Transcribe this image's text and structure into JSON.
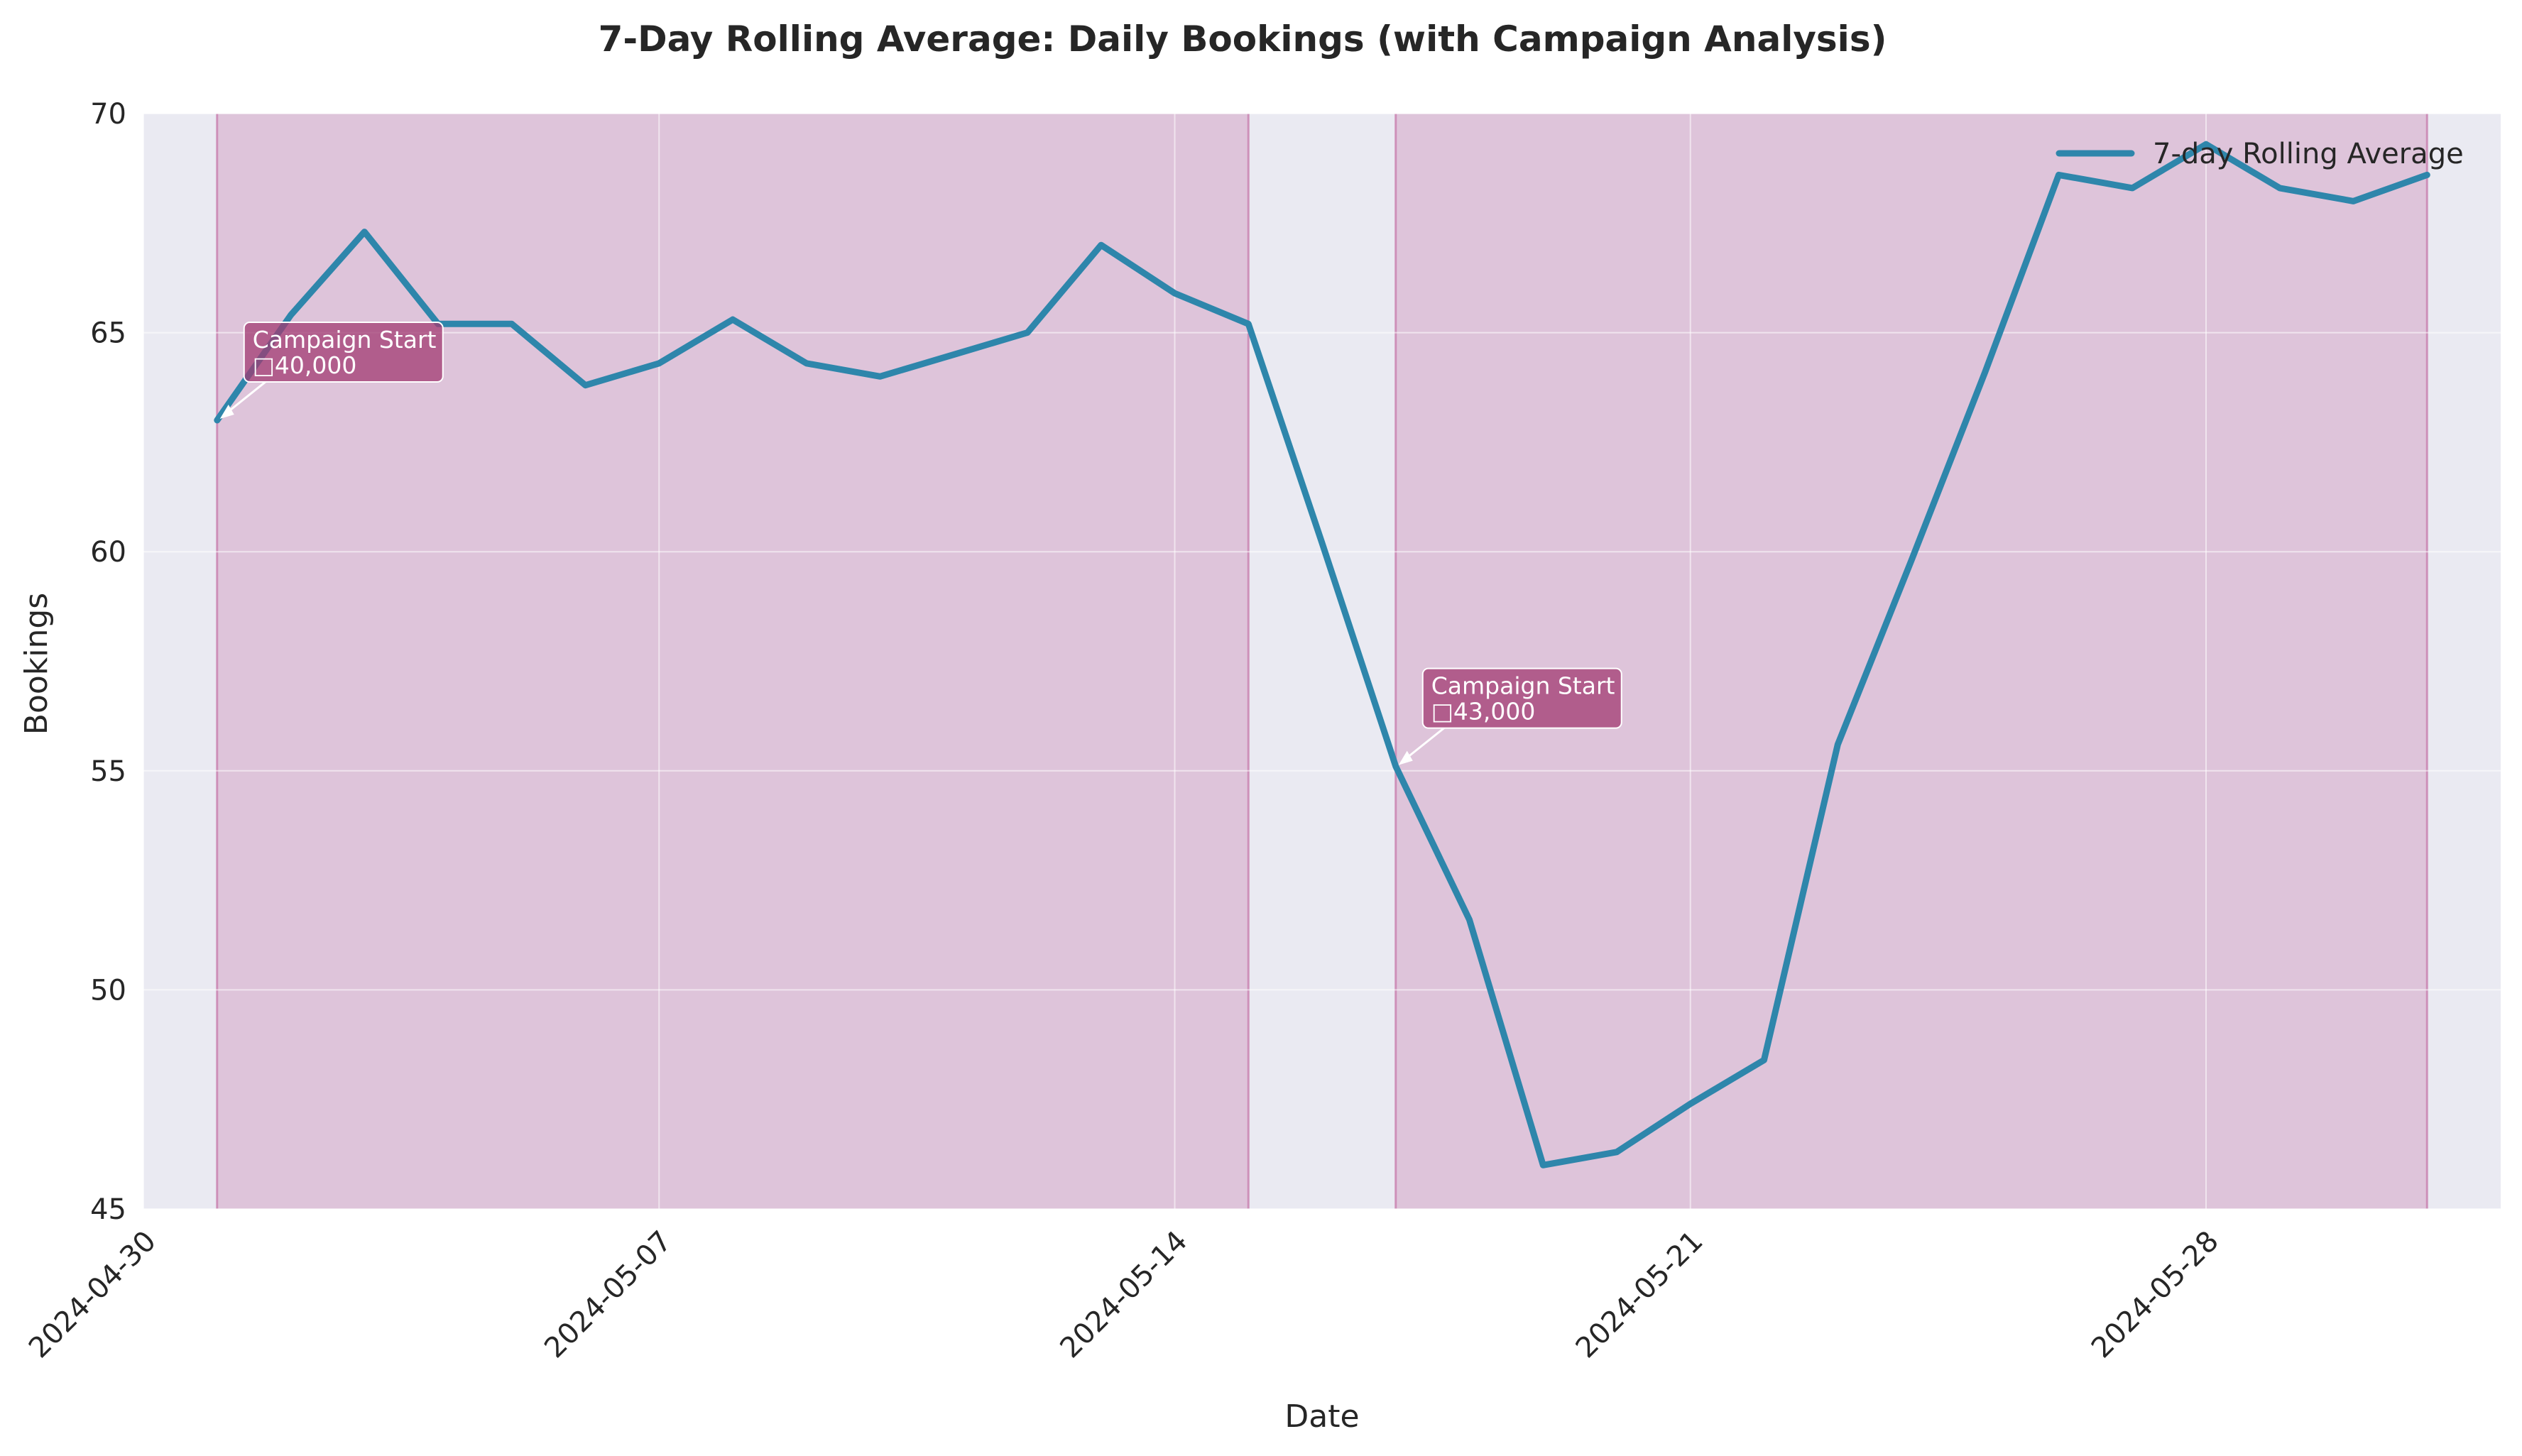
{
  "chart_data": {
    "type": "line",
    "title": "7-Day Rolling Average: Daily Bookings (with Campaign Analysis)",
    "xlabel": "Date",
    "ylabel": "Bookings",
    "x_start": "2024-05-01",
    "x_end": "2024-05-31",
    "xlim": [
      "2024-04-30",
      "2024-06-01"
    ],
    "ylim": [
      45,
      70
    ],
    "yticks": [
      45,
      50,
      55,
      60,
      65,
      70
    ],
    "xticks": [
      "2024-04-30",
      "2024-05-07",
      "2024-05-14",
      "2024-05-21",
      "2024-05-28"
    ],
    "grid": true,
    "legend_position": "top-right",
    "series": [
      {
        "name": "7-day Rolling Average",
        "color": "#2E86AB",
        "x": [
          "2024-05-01",
          "2024-05-02",
          "2024-05-03",
          "2024-05-04",
          "2024-05-05",
          "2024-05-06",
          "2024-05-07",
          "2024-05-08",
          "2024-05-09",
          "2024-05-10",
          "2024-05-11",
          "2024-05-12",
          "2024-05-13",
          "2024-05-14",
          "2024-05-15",
          "2024-05-16",
          "2024-05-17",
          "2024-05-18",
          "2024-05-19",
          "2024-05-20",
          "2024-05-21",
          "2024-05-22",
          "2024-05-23",
          "2024-05-24",
          "2024-05-25",
          "2024-05-26",
          "2024-05-27",
          "2024-05-28",
          "2024-05-29",
          "2024-05-30",
          "2024-05-31"
        ],
        "values": [
          63.0,
          65.4,
          67.3,
          65.2,
          65.2,
          63.8,
          64.3,
          65.3,
          64.3,
          64.0,
          64.5,
          65.0,
          67.0,
          65.9,
          65.2,
          60.2,
          55.1,
          51.6,
          46.0,
          46.3,
          47.4,
          48.4,
          55.6,
          59.8,
          64.1,
          68.6,
          68.3,
          69.3,
          68.3,
          68.0,
          68.6
        ]
      }
    ],
    "campaigns": [
      {
        "start": "2024-05-01",
        "end": "2024-05-15",
        "label": "Campaign Start",
        "budget": "40,000",
        "anchor_value": 63.0
      },
      {
        "start": "2024-05-17",
        "end": "2024-05-31",
        "label": "Campaign Start",
        "budget": "43,000",
        "anchor_value": 55.1
      }
    ],
    "colors": {
      "line": "#2E86AB",
      "campaign_fill": "#C87FAE",
      "annotation_box": "#A23B72",
      "plot_background": "#EAEAF2"
    }
  }
}
